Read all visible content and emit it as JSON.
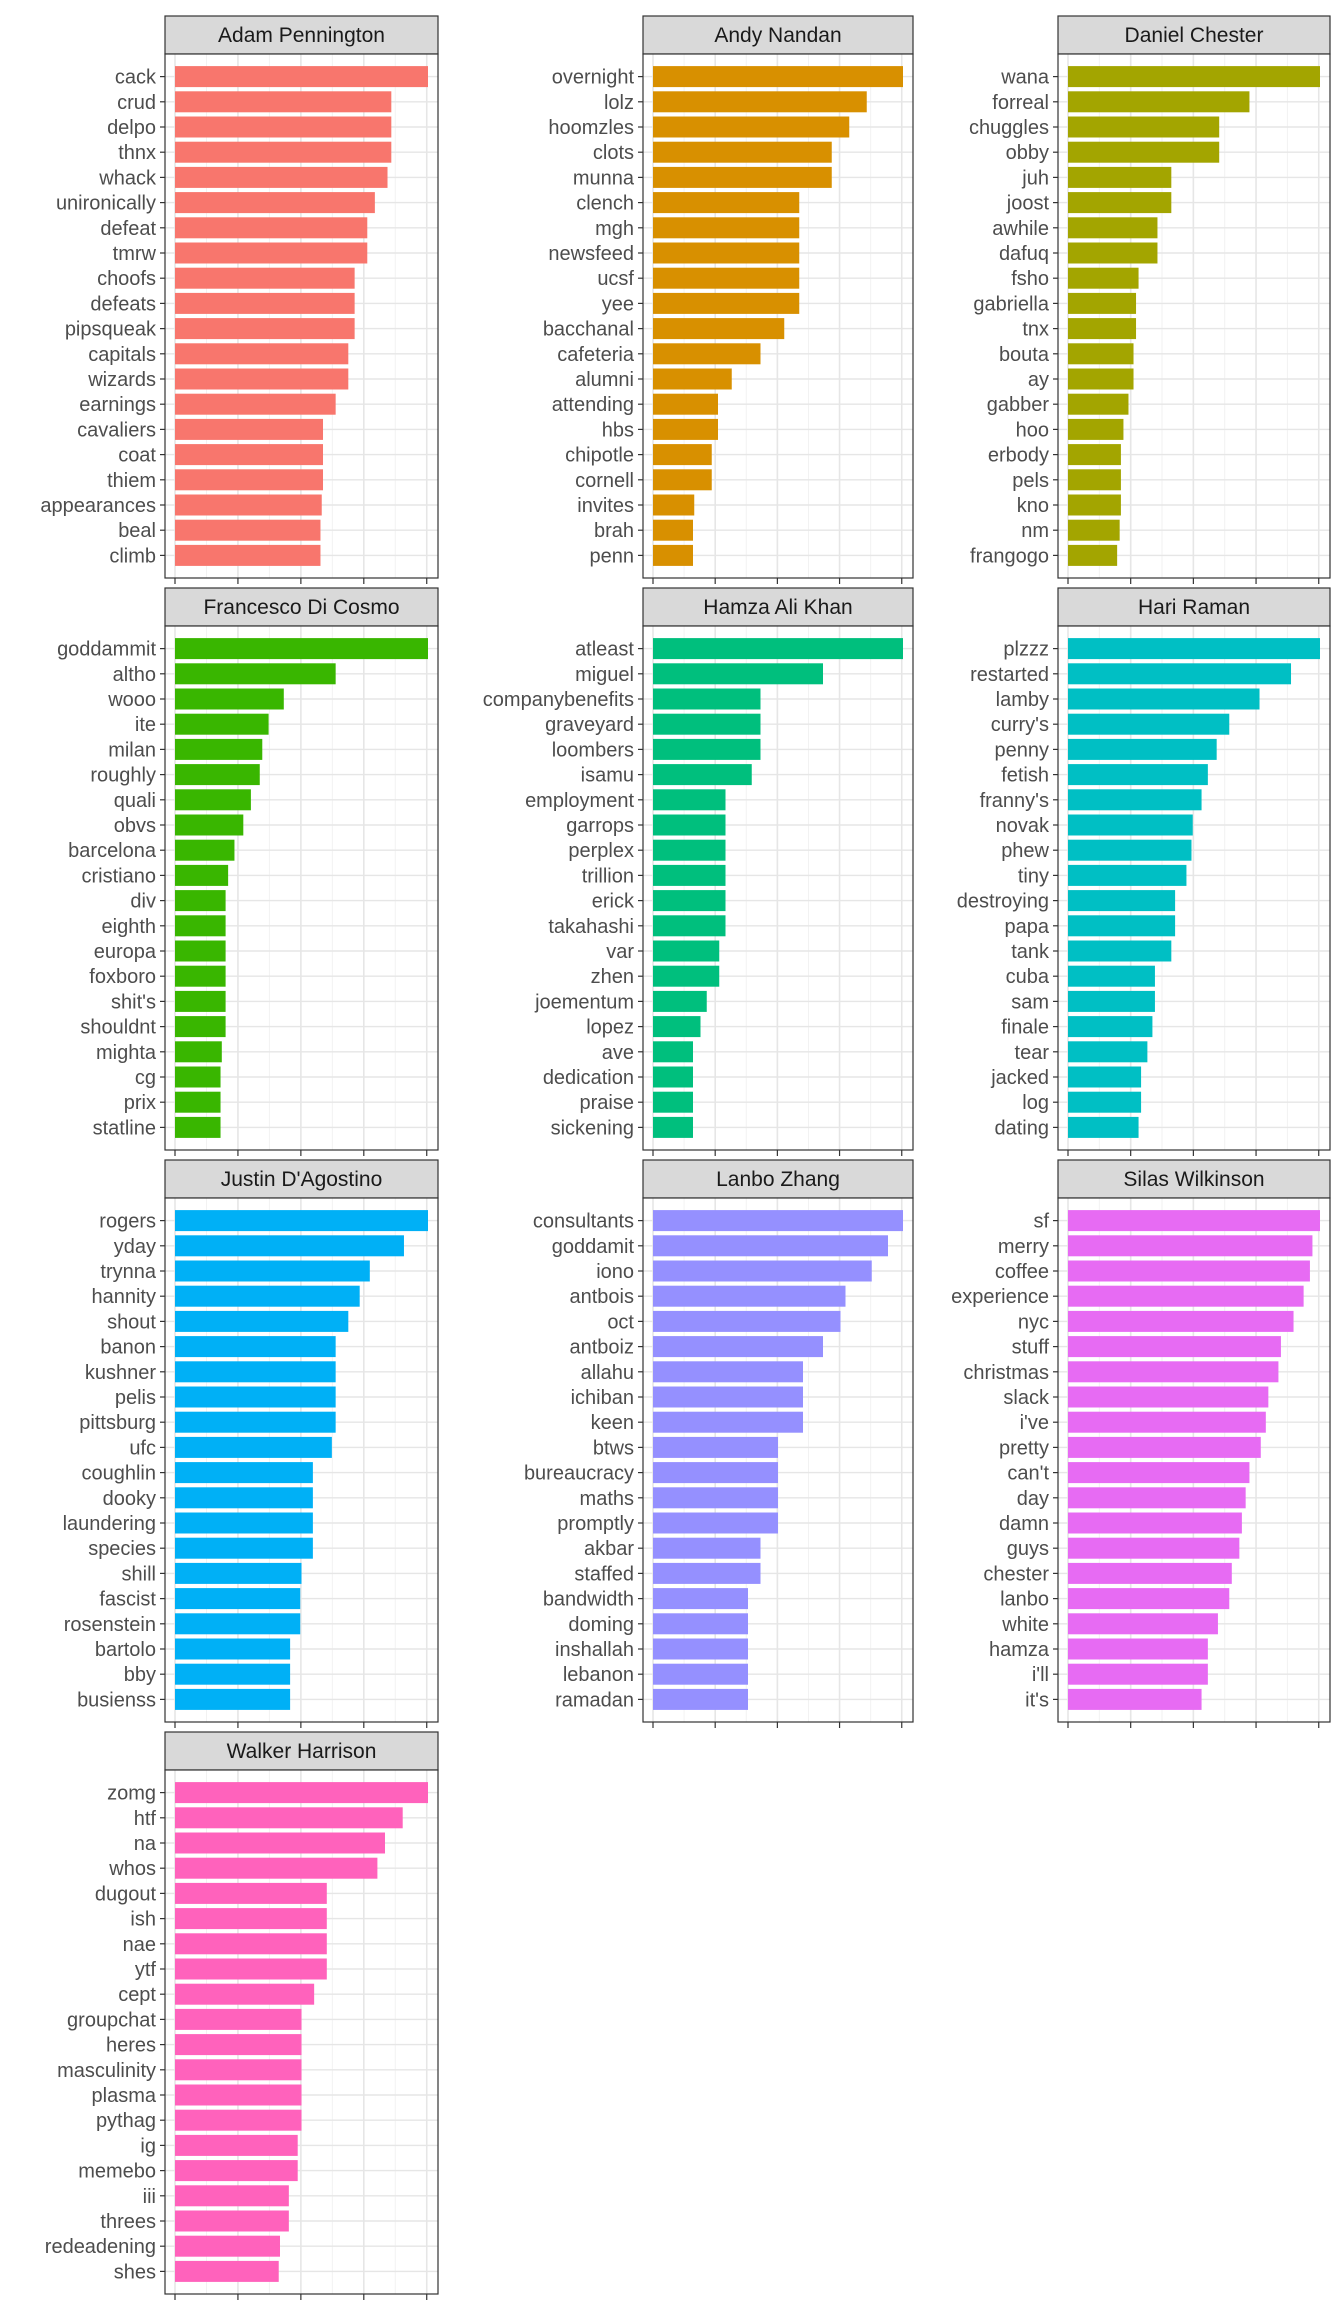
{
  "chart_data": {
    "type": "bar",
    "orientation": "horizontal",
    "legend": "none",
    "grid": true,
    "x_tick_labels_shown": false,
    "facets": [
      {
        "name": "Adam Pennington",
        "color": "#F8766D",
        "categories": [
          "cack",
          "crud",
          "delpo",
          "thnx",
          "whack",
          "unironically",
          "defeat",
          "tmrw",
          "choofs",
          "defeats",
          "pipsqueak",
          "capitals",
          "wizards",
          "earnings",
          "cavaliers",
          "coat",
          "thiem",
          "appearances",
          "beal",
          "climb"
        ],
        "values": [
          1.0,
          0.855,
          0.855,
          0.855,
          0.84,
          0.79,
          0.76,
          0.76,
          0.71,
          0.71,
          0.71,
          0.685,
          0.685,
          0.635,
          0.585,
          0.585,
          0.585,
          0.58,
          0.575,
          0.575
        ]
      },
      {
        "name": "Andy Nandan",
        "color": "#D89000",
        "categories": [
          "overnight",
          "lolz",
          "hoomzles",
          "clots",
          "munna",
          "clench",
          "mgh",
          "newsfeed",
          "ucsf",
          "yee",
          "bacchanal",
          "cafeteria",
          "alumni",
          "attending",
          "hbs",
          "chipotle",
          "cornell",
          "invites",
          "brah",
          "penn"
        ],
        "values": [
          1.0,
          0.855,
          0.785,
          0.715,
          0.715,
          0.585,
          0.585,
          0.585,
          0.585,
          0.585,
          0.525,
          0.43,
          0.315,
          0.26,
          0.26,
          0.235,
          0.235,
          0.165,
          0.16,
          0.16
        ]
      },
      {
        "name": "Daniel Chester",
        "color": "#A3A500",
        "categories": [
          "wana",
          "forreal",
          "chuggles",
          "obby",
          "juh",
          "joost",
          "awhile",
          "dafuq",
          "fsho",
          "gabriella",
          "tnx",
          "bouta",
          "ay",
          "gabber",
          "hoo",
          "erbody",
          "pels",
          "kno",
          "nm",
          "frangogo"
        ],
        "values": [
          1.0,
          0.72,
          0.6,
          0.6,
          0.41,
          0.41,
          0.355,
          0.355,
          0.28,
          0.27,
          0.27,
          0.26,
          0.26,
          0.24,
          0.22,
          0.21,
          0.21,
          0.21,
          0.205,
          0.195
        ]
      },
      {
        "name": "Francesco Di Cosmo",
        "color": "#39B600",
        "categories": [
          "goddammit",
          "altho",
          "wooo",
          "ite",
          "milan",
          "roughly",
          "quali",
          "obvs",
          "barcelona",
          "cristiano",
          "div",
          "eighth",
          "europa",
          "foxboro",
          "shit's",
          "shouldnt",
          "mighta",
          "cg",
          "prix",
          "statline"
        ],
        "values": [
          1.0,
          0.635,
          0.43,
          0.37,
          0.345,
          0.335,
          0.3,
          0.27,
          0.235,
          0.21,
          0.2,
          0.2,
          0.2,
          0.2,
          0.2,
          0.2,
          0.185,
          0.18,
          0.18,
          0.18
        ]
      },
      {
        "name": "Hamza Ali Khan",
        "color": "#00BF7D",
        "categories": [
          "atleast",
          "miguel",
          "companybenefits",
          "graveyard",
          "loombers",
          "isamu",
          "employment",
          "garrops",
          "perplex",
          "trillion",
          "erick",
          "takahashi",
          "var",
          "zhen",
          "joementum",
          "lopez",
          "ave",
          "dedication",
          "praise",
          "sickening"
        ],
        "values": [
          1.0,
          0.68,
          0.43,
          0.43,
          0.43,
          0.395,
          0.29,
          0.29,
          0.29,
          0.29,
          0.29,
          0.29,
          0.265,
          0.265,
          0.215,
          0.19,
          0.16,
          0.16,
          0.16,
          0.16
        ]
      },
      {
        "name": "Hari Raman",
        "color": "#00BFC4",
        "categories": [
          "plzzz",
          "restarted",
          "lamby",
          "curry's",
          "penny",
          "fetish",
          "franny's",
          "novak",
          "phew",
          "tiny",
          "destroying",
          "papa",
          "tank",
          "cuba",
          "sam",
          "finale",
          "tear",
          "jacked",
          "log",
          "dating"
        ],
        "values": [
          1.0,
          0.885,
          0.76,
          0.64,
          0.59,
          0.555,
          0.53,
          0.495,
          0.49,
          0.47,
          0.425,
          0.425,
          0.41,
          0.345,
          0.345,
          0.335,
          0.315,
          0.29,
          0.29,
          0.28
        ]
      },
      {
        "name": "Justin D'Agostino",
        "color": "#00B0F6",
        "categories": [
          "rogers",
          "yday",
          "trynna",
          "hannity",
          "shout",
          "banon",
          "kushner",
          "pelis",
          "pittsburg",
          "ufc",
          "coughlin",
          "dooky",
          "laundering",
          "species",
          "shill",
          "fascist",
          "rosenstein",
          "bartolo",
          "bby",
          "busienss"
        ],
        "values": [
          1.0,
          0.905,
          0.77,
          0.73,
          0.685,
          0.635,
          0.635,
          0.635,
          0.635,
          0.62,
          0.545,
          0.545,
          0.545,
          0.545,
          0.5,
          0.495,
          0.495,
          0.455,
          0.455,
          0.455
        ]
      },
      {
        "name": "Lanbo Zhang",
        "color": "#9590FF",
        "categories": [
          "consultants",
          "goddamit",
          "iono",
          "antbois",
          "oct",
          "antboiz",
          "allahu",
          "ichiban",
          "keen",
          "btws",
          "bureaucracy",
          "maths",
          "promptly",
          "akbar",
          "staffed",
          "bandwidth",
          "doming",
          "inshallah",
          "lebanon",
          "ramadan"
        ],
        "values": [
          1.0,
          0.94,
          0.875,
          0.77,
          0.75,
          0.68,
          0.6,
          0.6,
          0.6,
          0.5,
          0.5,
          0.5,
          0.5,
          0.43,
          0.43,
          0.38,
          0.38,
          0.38,
          0.38,
          0.38
        ]
      },
      {
        "name": "Silas Wilkinson",
        "color": "#E76BF3",
        "categories": [
          "sf",
          "merry",
          "coffee",
          "experience",
          "nyc",
          "stuff",
          "christmas",
          "slack",
          "i've",
          "pretty",
          "can't",
          "day",
          "damn",
          "guys",
          "chester",
          "lanbo",
          "white",
          "hamza",
          "i'll",
          "it's"
        ],
        "values": [
          1.0,
          0.97,
          0.96,
          0.935,
          0.895,
          0.845,
          0.835,
          0.795,
          0.785,
          0.765,
          0.72,
          0.705,
          0.69,
          0.68,
          0.65,
          0.64,
          0.595,
          0.555,
          0.555,
          0.53
        ]
      },
      {
        "name": "Walker Harrison",
        "color": "#FF62BC",
        "categories": [
          "zomg",
          "htf",
          "na",
          "whos",
          "dugout",
          "ish",
          "nae",
          "ytf",
          "cept",
          "groupchat",
          "heres",
          "masculinity",
          "plasma",
          "pythag",
          "ig",
          "memebo",
          "iii",
          "threes",
          "redeadening",
          "shes"
        ],
        "values": [
          1.0,
          0.9,
          0.83,
          0.8,
          0.6,
          0.6,
          0.6,
          0.6,
          0.55,
          0.5,
          0.5,
          0.5,
          0.5,
          0.5,
          0.485,
          0.485,
          0.45,
          0.45,
          0.415,
          0.41
        ]
      }
    ]
  }
}
